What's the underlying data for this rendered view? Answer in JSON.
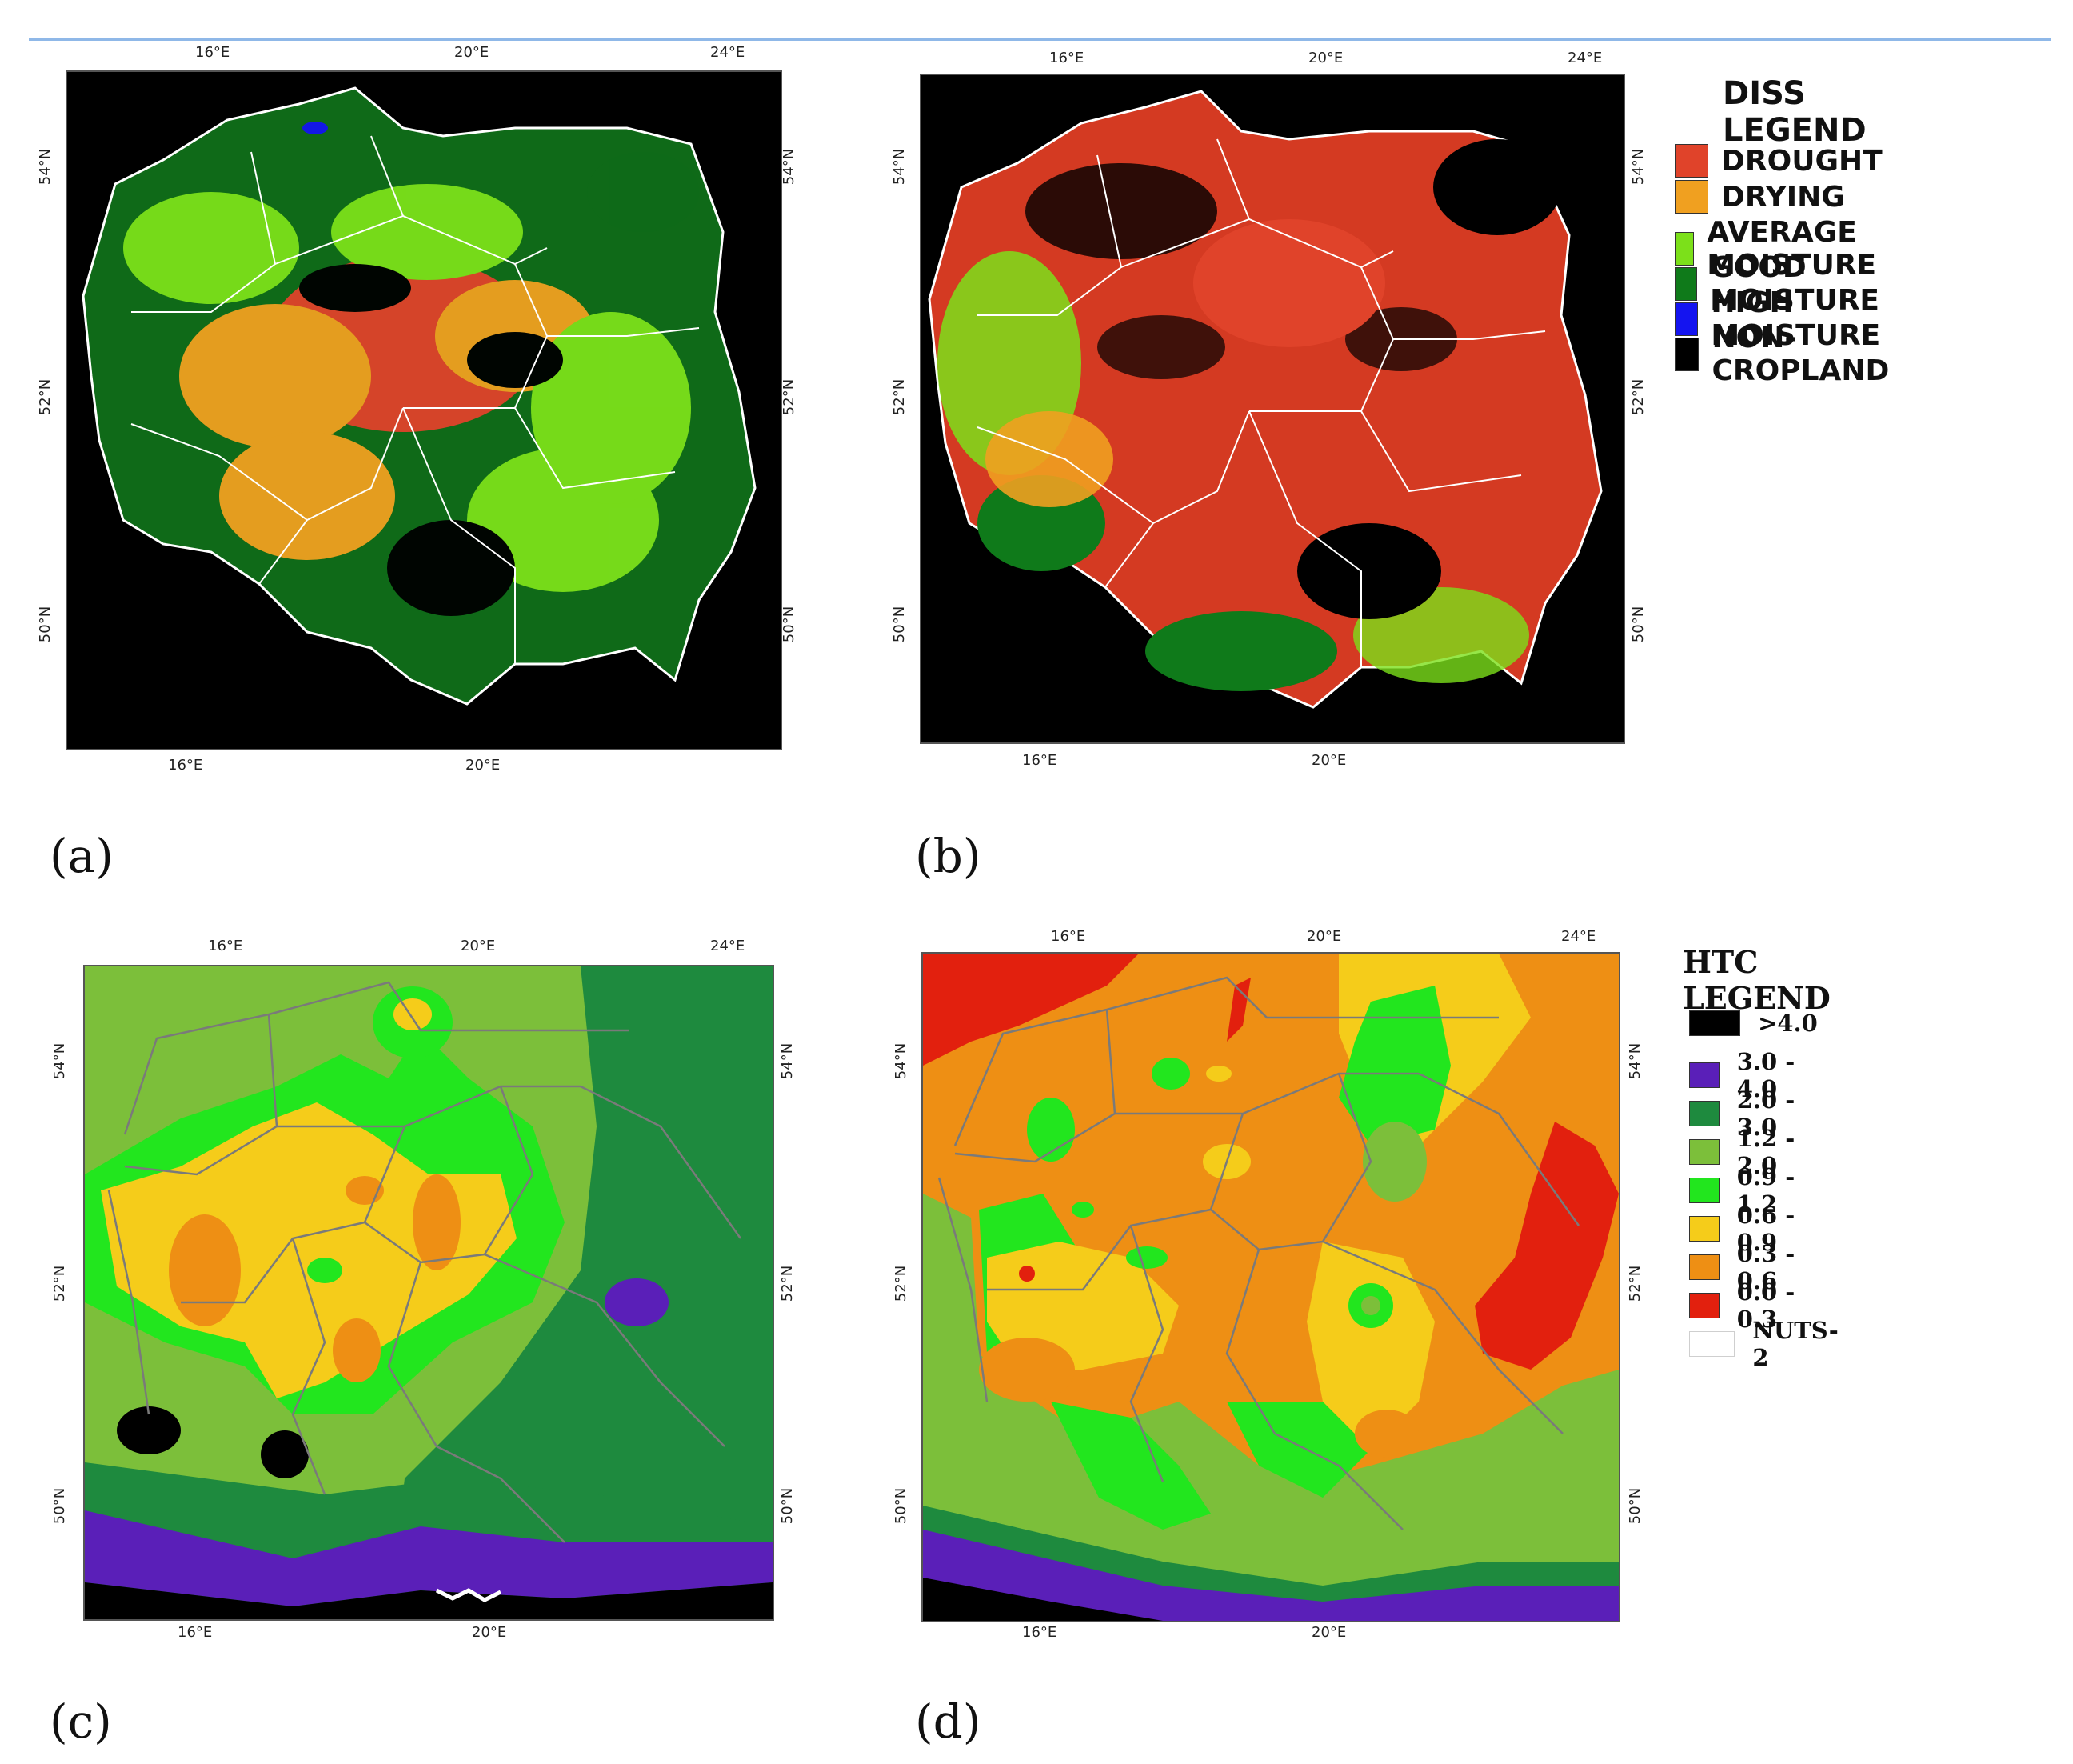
{
  "colors": {
    "diss_drought": "#e0432a",
    "diss_drying": "#f0a020",
    "diss_average": "#7ce01a",
    "diss_good": "#0f7a1a",
    "diss_high": "#1414f0",
    "diss_noncrop": "#000000",
    "htc_gt4": "#000000",
    "htc_3_4": "#5a1fb8",
    "htc_2_3": "#1e8a3e",
    "htc_12_2": "#7cbf3a",
    "htc_09_12": "#22e61e",
    "htc_06_09": "#f5cc1a",
    "htc_03_06": "#ee8f14",
    "htc_0_03": "#e2200e",
    "nuts_border": "#b0b0b0"
  },
  "panels": {
    "a": {
      "label": "(a)",
      "top_ticks": [
        "16°E",
        "20°E",
        "24°E"
      ],
      "bottom_ticks": [
        "16°E",
        "20°E"
      ],
      "left_ticks": [
        "54°N",
        "52°N",
        "50°N"
      ],
      "right_ticks": [
        "54°N",
        "52°N",
        "50°N"
      ]
    },
    "b": {
      "label": "(b)",
      "top_ticks": [
        "16°E",
        "20°E",
        "24°E"
      ],
      "bottom_ticks": [
        "16°E",
        "20°E"
      ],
      "left_ticks": [
        "54°N",
        "52°N",
        "50°N"
      ],
      "right_ticks": [
        "54°N",
        "52°N",
        "50°N"
      ]
    },
    "c": {
      "label": "(c)",
      "top_ticks": [
        "16°E",
        "20°E",
        "24°E"
      ],
      "bottom_ticks": [
        "16°E",
        "20°E"
      ],
      "left_ticks": [
        "54°N",
        "52°N",
        "50°N"
      ],
      "right_ticks": [
        "54°N",
        "52°N",
        "50°N"
      ]
    },
    "d": {
      "label": "(d)",
      "top_ticks": [
        "16°E",
        "20°E",
        "24°E"
      ],
      "bottom_ticks": [
        "16°E",
        "20°E"
      ],
      "left_ticks": [
        "54°N",
        "52°N",
        "50°N"
      ],
      "right_ticks": [
        "54°N",
        "52°N",
        "50°N"
      ]
    }
  },
  "diss_legend": {
    "title": "DISS LEGEND",
    "items": [
      "DROUGHT",
      "DRYING",
      "AVERAGE MOISTURE",
      "GOOD MOISTURE",
      "HIGH MOISTURE",
      "NON-CROPLAND"
    ]
  },
  "htc_legend": {
    "title": "HTC LEGEND",
    "items": [
      ">4.0",
      "3.0 - 4.0",
      "2.0 - 3.0",
      "1.2 - 2.0",
      "0.9 - 1.2",
      "0.6 - 0.9",
      "0.3 - 0.6",
      "0.0 - 0.3",
      "NUTS-2"
    ]
  }
}
